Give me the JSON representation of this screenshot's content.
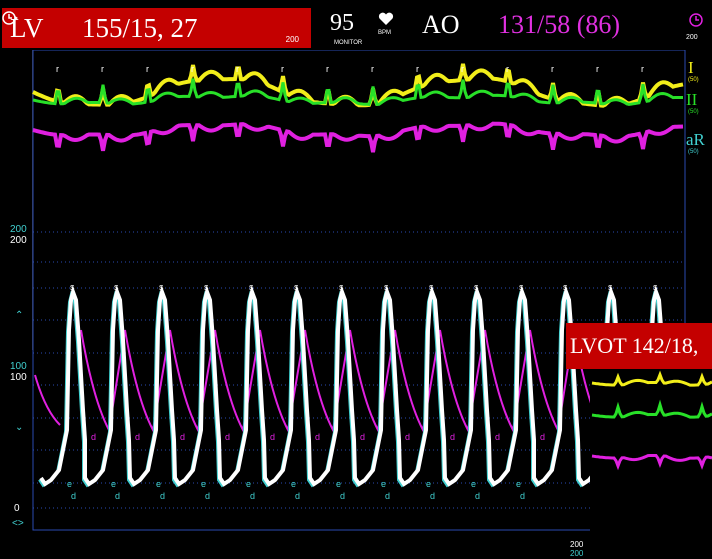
{
  "lv": {
    "label": "LV",
    "pressure": "155/15, 27",
    "scale": "200"
  },
  "heart_rate": {
    "value": "95",
    "source": "MONITOR",
    "unit": "BPM"
  },
  "ao": {
    "label": "AO",
    "pressure": "131/58 (86)",
    "scale": "200"
  },
  "leads": [
    {
      "name": "I",
      "gain": "(50)",
      "color": "#f2ee1a"
    },
    {
      "name": "II",
      "gain": "(50)",
      "color": "#28e028"
    },
    {
      "name": "aR",
      "gain": "(50)",
      "color": "#e020e0"
    }
  ],
  "pressure_scale": {
    "top": "200",
    "top2": "200",
    "mid": "100",
    "mid2": "100",
    "bottom": "0"
  },
  "lvot": {
    "text": "LVOT  142/18,"
  },
  "bottom_scale": {
    "a": "200",
    "b": "200"
  },
  "markers": {
    "systole": "s",
    "diastole": "d",
    "end": "e",
    "r": "r"
  },
  "colors": {
    "ecg_i": "#f2ee1a",
    "ecg_ii": "#28e028",
    "ecg_ar": "#e020e0",
    "lv_trace": "#ffffff",
    "lv_outline": "#40d0d0",
    "ao_trace": "#e020e0",
    "grid": "#2a4ab0"
  }
}
